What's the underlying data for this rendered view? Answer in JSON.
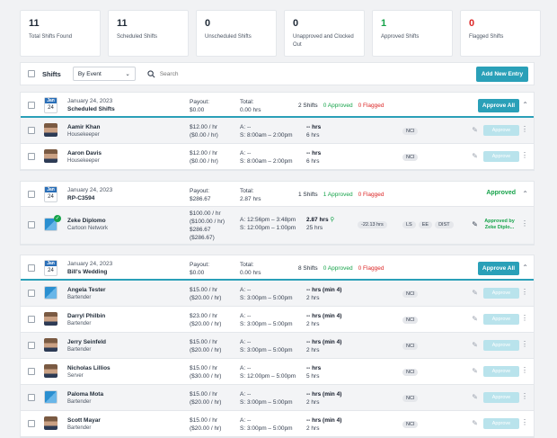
{
  "stats": [
    {
      "num": "11",
      "label": "Total Shifts Found",
      "color": "#1f2a37"
    },
    {
      "num": "11",
      "label": "Scheduled Shifts",
      "color": "#1f2a37"
    },
    {
      "num": "0",
      "label": "Unscheduled Shifts",
      "color": "#1f2a37"
    },
    {
      "num": "0",
      "label": "Unapproved and Clocked Out",
      "color": "#1f2a37"
    },
    {
      "num": "1",
      "label": "Approved Shifts",
      "color": "#16a34a"
    },
    {
      "num": "0",
      "label": "Flagged Shifts",
      "color": "#dc2626"
    }
  ],
  "toolbar": {
    "title": "Shifts",
    "group_by": "By Event",
    "search_placeholder": "Search",
    "add_label": "Add New Entry"
  },
  "groups": [
    {
      "cal_month": "Jan",
      "cal_day": "24",
      "date": "January 24, 2023",
      "name": "Scheduled Shifts",
      "payout_label": "Payout:",
      "payout": "$0.00",
      "total_label": "Total:",
      "total": "0.00 hrs",
      "shifts": "2 Shifts",
      "approved": "0 Approved",
      "flagged": "0 Flagged",
      "action": "Approve All",
      "rows": [
        {
          "name": "Aamir Khan",
          "role": "Housekeeper",
          "rate": "$12.00 / hr",
          "rate2": "($0.00 / hr)",
          "a": "A: --",
          "s": "S:  8:00am – 2:00pm",
          "hrs": "-- hrs",
          "hrs2": "6 hrs",
          "tags": [
            "NCI"
          ],
          "approve": "Approve"
        },
        {
          "name": "Aaron Davis",
          "role": "Housekeeper",
          "rate": "$12.00 / hr",
          "rate2": "($0.00 / hr)",
          "a": "A: --",
          "s": "S:  8:00am – 2:00pm",
          "hrs": "-- hrs",
          "hrs2": "6 hrs",
          "tags": [
            "NCI"
          ],
          "approve": "Approve"
        }
      ]
    },
    {
      "cal_month": "Jan",
      "cal_day": "24",
      "date": "January 24, 2023",
      "name": "RP-C3594",
      "payout_label": "Payout:",
      "payout": "$286.67",
      "total_label": "Total:",
      "total": "2.87 hrs",
      "shifts": "1 Shifts",
      "approved": "1 Approved",
      "flagged": "0 Flagged",
      "action": "Approved",
      "rows": [
        {
          "name": "Zeke Diplomo",
          "role": "Cartoon Network",
          "rate": "$100.00 / hr",
          "rate2": "($100.00 / hr)",
          "rate3": "$286.67",
          "rate4": "($286.67)",
          "a": "A:  12:56pm – 3:48pm",
          "s": "S:  12:00pm – 1:00pm",
          "hrs": "2.87 hrs",
          "hrs2": "25 hrs",
          "diff": "-22.13 hrs",
          "tags": [
            "LS",
            "EE",
            "DIST"
          ],
          "approved_by": "Approved by Zeke Diplo..."
        }
      ]
    },
    {
      "cal_month": "Jan",
      "cal_day": "24",
      "date": "January 24, 2023",
      "name": "Bill's Wedding",
      "payout_label": "Payout:",
      "payout": "$0.00",
      "total_label": "Total:",
      "total": "0.00 hrs",
      "shifts": "8 Shifts",
      "approved": "0 Approved",
      "flagged": "0 Flagged",
      "action": "Approve All",
      "rows": [
        {
          "name": "Angela Tester",
          "role": "Bartender",
          "rate": "$15.00 / hr",
          "rate2": "($20.00 / hr)",
          "a": "A: --",
          "s": "S:  3:00pm – 5:00pm",
          "hrs": "-- hrs (min 4)",
          "hrs2": "2 hrs",
          "tags": [
            "NCI"
          ],
          "approve": "Approve"
        },
        {
          "name": "Darryl Philbin",
          "role": "Bartender",
          "rate": "$23.00 / hr",
          "rate2": "($20.00 / hr)",
          "a": "A: --",
          "s": "S:  3:00pm – 5:00pm",
          "hrs": "-- hrs (min 4)",
          "hrs2": "2 hrs",
          "tags": [
            "NCI"
          ],
          "approve": "Approve"
        },
        {
          "name": "Jerry Seinfeld",
          "role": "Bartender",
          "rate": "$15.00 / hr",
          "rate2": "($20.00 / hr)",
          "a": "A: --",
          "s": "S:  3:00pm – 5:00pm",
          "hrs": "-- hrs (min 4)",
          "hrs2": "2 hrs",
          "tags": [
            "NCI"
          ],
          "approve": "Approve"
        },
        {
          "name": "Nicholas Lillios",
          "role": "Server",
          "rate": "$15.00 / hr",
          "rate2": "($30.00 / hr)",
          "a": "A: --",
          "s": "S:  12:00pm – 5:00pm",
          "hrs": "-- hrs",
          "hrs2": "5 hrs",
          "tags": [
            "NCI"
          ],
          "approve": "Approve"
        },
        {
          "name": "Paloma Mota",
          "role": "Bartender",
          "rate": "$15.00 / hr",
          "rate2": "($20.00 / hr)",
          "a": "A: --",
          "s": "S:  3:00pm – 5:00pm",
          "hrs": "-- hrs (min 4)",
          "hrs2": "2 hrs",
          "tags": [
            "NCI"
          ],
          "approve": "Approve"
        },
        {
          "name": "Scott Mayar",
          "role": "Bartender",
          "rate": "$15.00 / hr",
          "rate2": "($20.00 / hr)",
          "a": "A: --",
          "s": "S:  3:00pm – 5:00pm",
          "hrs": "-- hrs (min 4)",
          "hrs2": "2 hrs",
          "tags": [
            "NCI"
          ],
          "approve": "Approve"
        }
      ]
    }
  ]
}
